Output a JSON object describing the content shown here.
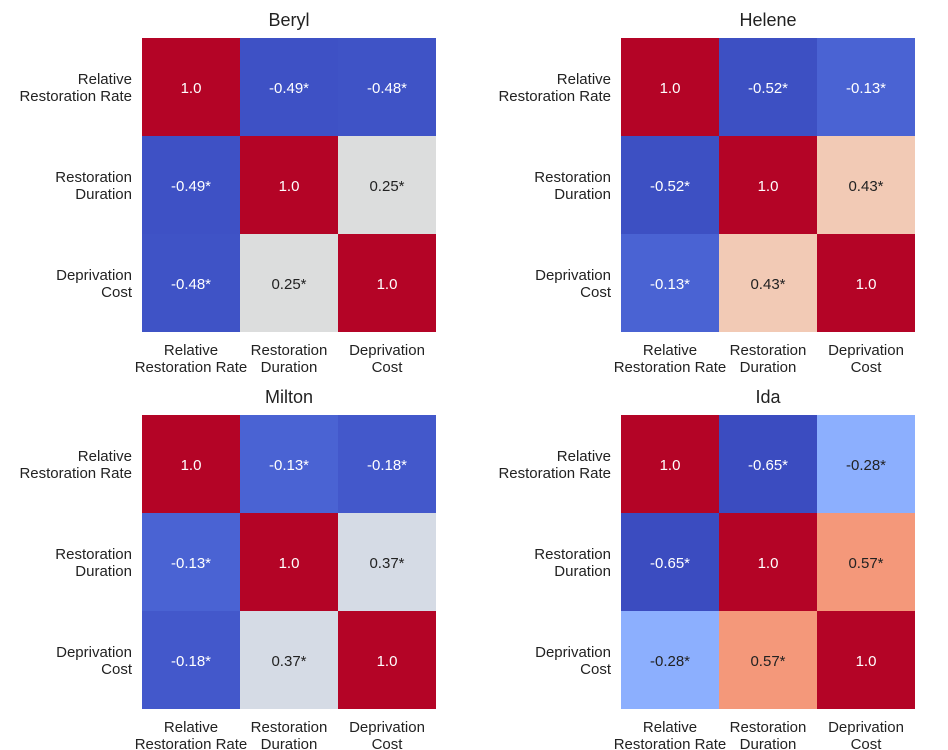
{
  "chart_data": [
    {
      "type": "heatmap",
      "title": "Beryl",
      "row_labels": [
        [
          "Relative",
          "Restoration Rate"
        ],
        [
          "Restoration",
          "Duration"
        ],
        [
          "Deprivation",
          "Cost"
        ]
      ],
      "col_labels": [
        [
          "Relative",
          "Restoration Rate"
        ],
        [
          "Restoration",
          "Duration"
        ],
        [
          "Deprivation",
          "Cost"
        ]
      ],
      "values": [
        [
          1.0,
          -0.49,
          -0.48
        ],
        [
          -0.49,
          1.0,
          0.25
        ],
        [
          -0.48,
          0.25,
          1.0
        ]
      ],
      "cell_labels": [
        [
          "1.0",
          "-0.49*",
          "-0.48*"
        ],
        [
          "-0.49*",
          "1.0",
          "0.25*"
        ],
        [
          "-0.48*",
          "0.25*",
          "1.0"
        ]
      ],
      "colormap": "coolwarm",
      "vmin": -0.65,
      "vmax": 1.0
    },
    {
      "type": "heatmap",
      "title": "Helene",
      "row_labels": [
        [
          "Relative",
          "Restoration Rate"
        ],
        [
          "Restoration",
          "Duration"
        ],
        [
          "Deprivation",
          "Cost"
        ]
      ],
      "col_labels": [
        [
          "Relative",
          "Restoration Rate"
        ],
        [
          "Restoration",
          "Duration"
        ],
        [
          "Deprivation",
          "Cost"
        ]
      ],
      "values": [
        [
          1.0,
          -0.52,
          -0.13
        ],
        [
          -0.52,
          1.0,
          0.43
        ],
        [
          -0.13,
          0.43,
          1.0
        ]
      ],
      "cell_labels": [
        [
          "1.0",
          "-0.52*",
          "-0.13*"
        ],
        [
          "-0.52*",
          "1.0",
          "0.43*"
        ],
        [
          "-0.13*",
          "0.43*",
          "1.0"
        ]
      ],
      "colormap": "coolwarm",
      "vmin": -0.65,
      "vmax": 1.0
    },
    {
      "type": "heatmap",
      "title": "Milton",
      "row_labels": [
        [
          "Relative",
          "Restoration Rate"
        ],
        [
          "Restoration",
          "Duration"
        ],
        [
          "Deprivation",
          "Cost"
        ]
      ],
      "col_labels": [
        [
          "Relative",
          "Restoration Rate"
        ],
        [
          "Restoration",
          "Duration"
        ],
        [
          "Deprivation",
          "Cost"
        ]
      ],
      "values": [
        [
          1.0,
          -0.13,
          -0.18
        ],
        [
          -0.13,
          1.0,
          0.37
        ],
        [
          -0.18,
          0.37,
          1.0
        ]
      ],
      "cell_labels": [
        [
          "1.0",
          "-0.13*",
          "-0.18*"
        ],
        [
          "-0.13*",
          "1.0",
          "0.37*"
        ],
        [
          "-0.18*",
          "0.37*",
          "1.0"
        ]
      ],
      "colormap": "coolwarm",
      "vmin": -0.65,
      "vmax": 1.0
    },
    {
      "type": "heatmap",
      "title": "Ida",
      "row_labels": [
        [
          "Relative",
          "Restoration Rate"
        ],
        [
          "Restoration",
          "Duration"
        ],
        [
          "Deprivation",
          "Cost"
        ]
      ],
      "col_labels": [
        [
          "Relative",
          "Restoration Rate"
        ],
        [
          "Restoration",
          "Duration"
        ],
        [
          "Deprivation",
          "Cost"
        ]
      ],
      "values": [
        [
          1.0,
          -0.65,
          -0.28
        ],
        [
          -0.65,
          1.0,
          0.57
        ],
        [
          -0.28,
          0.57,
          1.0
        ]
      ],
      "cell_labels": [
        [
          "1.0",
          "-0.65*",
          "-0.28*"
        ],
        [
          "-0.65*",
          "1.0",
          "0.57*"
        ],
        [
          "-0.28*",
          "0.57*",
          "1.0"
        ]
      ],
      "colormap": "coolwarm",
      "vmin": -0.65,
      "vmax": 1.0
    }
  ],
  "colors": {
    "scale": [
      {
        "v": -0.65,
        "c": "#3b4cc0"
      },
      {
        "v": -0.52,
        "c": "#3d50c3"
      },
      {
        "v": -0.49,
        "c": "#3e51c5"
      },
      {
        "v": -0.48,
        "c": "#3f53c6"
      },
      {
        "v": -0.28,
        "c": "#8caffe"
      },
      {
        "v": -0.18,
        "c": "#4358cb"
      },
      {
        "v": -0.13,
        "c": "#4a63d3"
      },
      {
        "v": 0.25,
        "c": "#dcdddd"
      },
      {
        "v": 0.37,
        "c": "#d5dbe5"
      },
      {
        "v": 0.43,
        "c": "#f2cab5"
      },
      {
        "v": 0.57,
        "c": "#f4987a"
      },
      {
        "v": 1.0,
        "c": "#b40426"
      }
    ],
    "text": "#222222",
    "light_cell_text": "#222222",
    "dark_cell_text": "#ffffff"
  }
}
